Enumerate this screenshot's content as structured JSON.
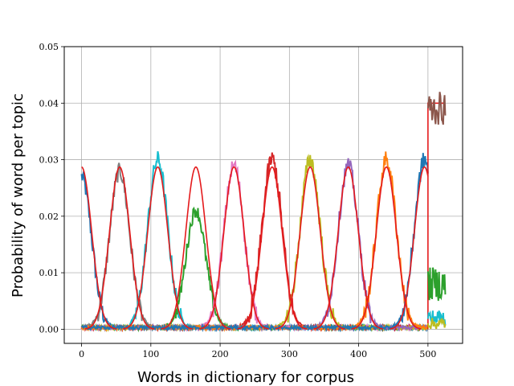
{
  "chart_data": {
    "type": "line",
    "title": "",
    "xlabel": "Words in dictionary for corpus",
    "ylabel": "Probability of word per topic",
    "xlim": [
      -25,
      550
    ],
    "ylim": [
      -0.0025,
      0.05
    ],
    "xticks": [
      0,
      100,
      200,
      300,
      400,
      500
    ],
    "yticks": [
      0.0,
      0.01,
      0.02,
      0.03,
      0.04,
      0.05
    ],
    "xtick_labels": [
      "0",
      "100",
      "200",
      "300",
      "400",
      "500"
    ],
    "ytick_labels": [
      "0.00",
      "0.01",
      "0.02",
      "0.03",
      "0.04",
      "0.05"
    ],
    "grid": true,
    "legend": "none",
    "true_topic_curves": {
      "color": "#e41a1c",
      "peak": 0.0287,
      "sigma": 14.5,
      "centers": [
        0,
        55,
        110,
        165,
        220,
        275,
        330,
        385,
        440,
        495
      ],
      "x_range": [
        0,
        525
      ]
    },
    "estimated_topics": [
      {
        "color": "#1f77b4",
        "center": 0,
        "peak": 0.027,
        "noise": 0.0015
      },
      {
        "color": "#7f7f7f",
        "center": 55,
        "peak": 0.028,
        "noise": 0.0015
      },
      {
        "color": "#17becf",
        "center": 110,
        "peak": 0.03,
        "noise": 0.0016
      },
      {
        "color": "#2ca02c",
        "center": 165,
        "peak": 0.021,
        "noise": 0.0012
      },
      {
        "color": "#e377c2",
        "center": 220,
        "peak": 0.029,
        "noise": 0.0015
      },
      {
        "color": "#d62728",
        "center": 275,
        "peak": 0.03,
        "noise": 0.0018
      },
      {
        "color": "#bcbd22",
        "center": 330,
        "peak": 0.03,
        "noise": 0.0016
      },
      {
        "color": "#9467bd",
        "center": 385,
        "peak": 0.029,
        "noise": 0.0015
      },
      {
        "color": "#ff7f0e",
        "center": 440,
        "peak": 0.03,
        "noise": 0.0016
      },
      {
        "color": "#1f77b4",
        "center": 495,
        "peak": 0.03,
        "noise": 0.0016
      }
    ],
    "tail_region": {
      "x_range": [
        500,
        525
      ],
      "curves": [
        {
          "color": "#8c564b",
          "level": 0.039,
          "noise": 0.003
        },
        {
          "color": "#2ca02c",
          "level": 0.008,
          "noise": 0.003
        },
        {
          "color": "#17becf",
          "level": 0.002,
          "noise": 0.0015
        },
        {
          "color": "#bcbd22",
          "level": 0.001,
          "noise": 0.001
        }
      ],
      "red_step_level": 0.04
    }
  }
}
